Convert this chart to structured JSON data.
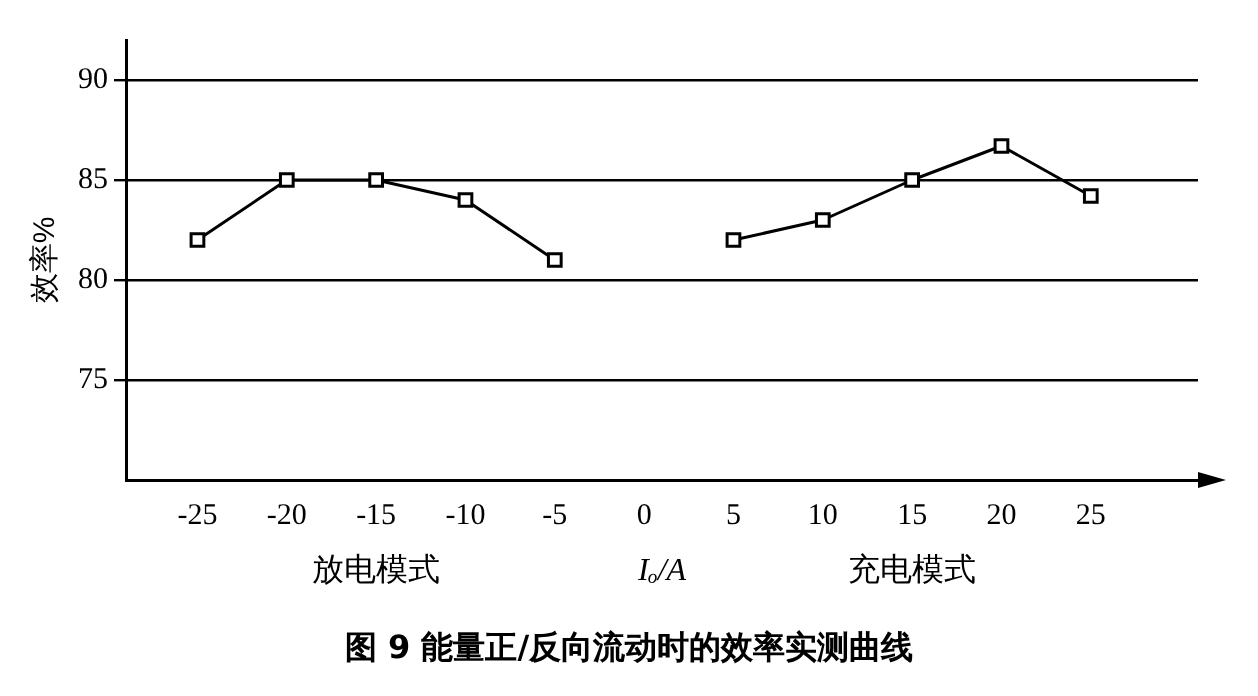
{
  "chart_data": {
    "type": "line",
    "title": "图 9   能量正/反向流动时的效率实测曲线",
    "xlabel": "Iₒ/A",
    "ylabel": "效率%",
    "annotations": [
      "放电模式",
      "充电模式"
    ],
    "series": [
      {
        "color": "#000000",
        "x": [
          -25,
          -20,
          -15,
          -10,
          -5
        ],
        "values": [
          82,
          85,
          85,
          84,
          81
        ]
      },
      {
        "color": "#000000",
        "x": [
          5,
          10,
          15,
          20,
          25
        ],
        "values": [
          82,
          83,
          85,
          86.7,
          84.2
        ]
      }
    ],
    "xlim": [
      -29,
      31
    ],
    "xticks": [
      -25,
      -20,
      -15,
      -10,
      -5,
      0,
      5,
      10,
      15,
      20,
      25
    ],
    "ylim": [
      70,
      92
    ],
    "yticks": [
      75,
      80,
      85,
      90
    ],
    "grid": "y",
    "legend": false,
    "marker": "square",
    "line_style": "solid"
  }
}
